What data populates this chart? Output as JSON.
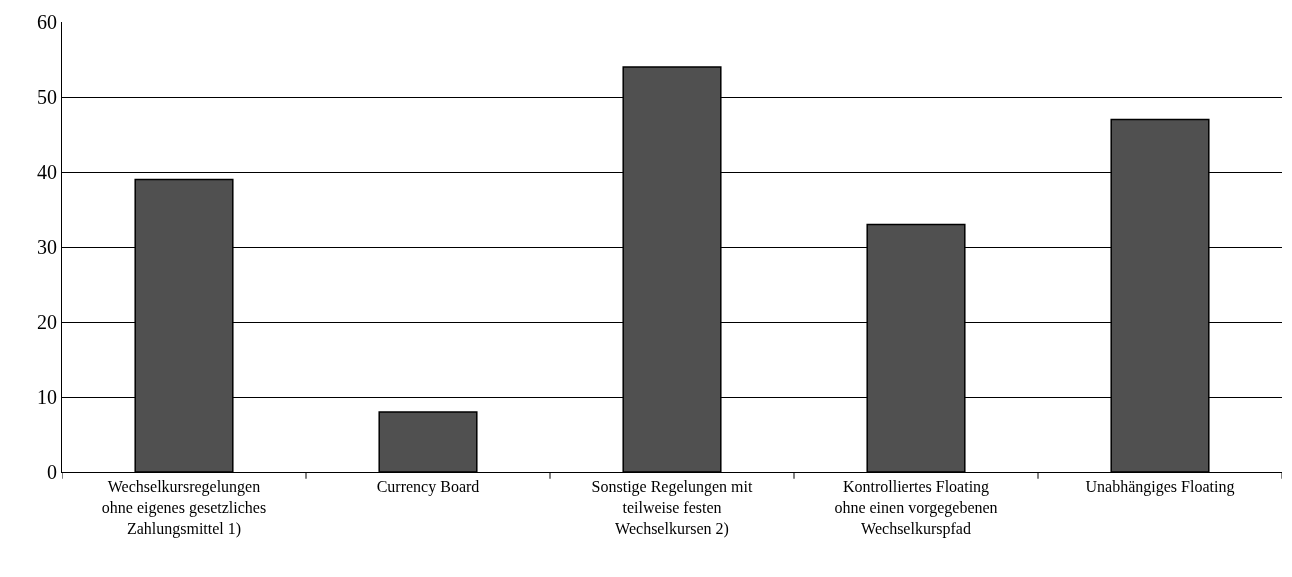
{
  "chart_data": {
    "type": "bar",
    "categories": [
      "Wechselkursregelungen ohne eigenes gesetzliches Zahlungsmittel 1)",
      "Currency Board",
      "Sonstige Regelungen mit teilweise festen Wechselkursen 2)",
      "Kontrolliertes Floating ohne einen vorgegebenen Wechselkurspfad",
      "Unabhängiges Floating"
    ],
    "values": [
      39,
      8,
      54,
      33,
      47
    ],
    "color": "#505050",
    "ylim": [
      0,
      60
    ],
    "yticks": [
      0,
      10,
      20,
      30,
      40,
      50,
      60
    ],
    "grid": "y",
    "legend": false
  }
}
